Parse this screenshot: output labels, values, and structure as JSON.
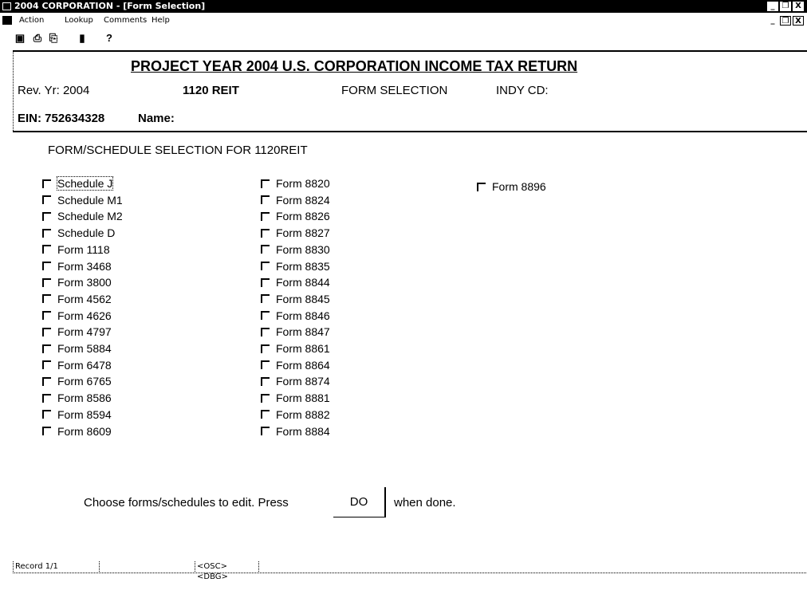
{
  "window": {
    "title": "2004 CORPORATION - [Form Selection]",
    "controls": [
      "_",
      "❐",
      "X"
    ]
  },
  "menu": {
    "items": [
      "Action",
      "Lookup",
      "Comments",
      "Help"
    ]
  },
  "toolbar": {
    "icons": [
      "save-icon",
      "print-icon",
      "print-preview-icon",
      "exit-icon",
      "help-icon"
    ],
    "help_label": "?"
  },
  "header": {
    "title": "PROJECT YEAR 2004 U.S. CORPORATION INCOME TAX RETURN",
    "rev_yr": "Rev. Yr: 2004",
    "form_type": "1120 REIT",
    "screen": "FORM SELECTION",
    "indy_cd": "INDY CD:",
    "ein": "EIN:  752634328",
    "name": "Name:"
  },
  "selection": {
    "heading": "FORM/SCHEDULE SELECTION FOR 1120REIT",
    "columns": [
      [
        "Schedule J",
        "Schedule M1",
        "Schedule M2",
        "Schedule D",
        "Form 1118",
        "Form 3468",
        "Form 3800",
        "Form 4562",
        "Form 4626",
        "Form 4797",
        "Form 5884",
        "Form 6478",
        "Form 6765",
        "Form 8586",
        "Form 8594",
        "Form 8609"
      ],
      [
        "Form 8820",
        "Form 8824",
        "Form 8826",
        "Form 8827",
        "Form 8830",
        "Form 8835",
        "Form 8844",
        "Form 8845",
        "Form 8846",
        "Form 8847",
        "Form 8861",
        "Form 8864",
        "Form 8874",
        "Form 8881",
        "Form 8882",
        "Form 8884"
      ],
      [
        "Form 8896"
      ]
    ]
  },
  "footer": {
    "instruction_pre": "Choose forms/schedules to edit.  Press",
    "do_label": "DO",
    "instruction_post": "when done."
  },
  "status": {
    "record": "Record 1/1",
    "flags": "<OSC> <DBG>"
  }
}
